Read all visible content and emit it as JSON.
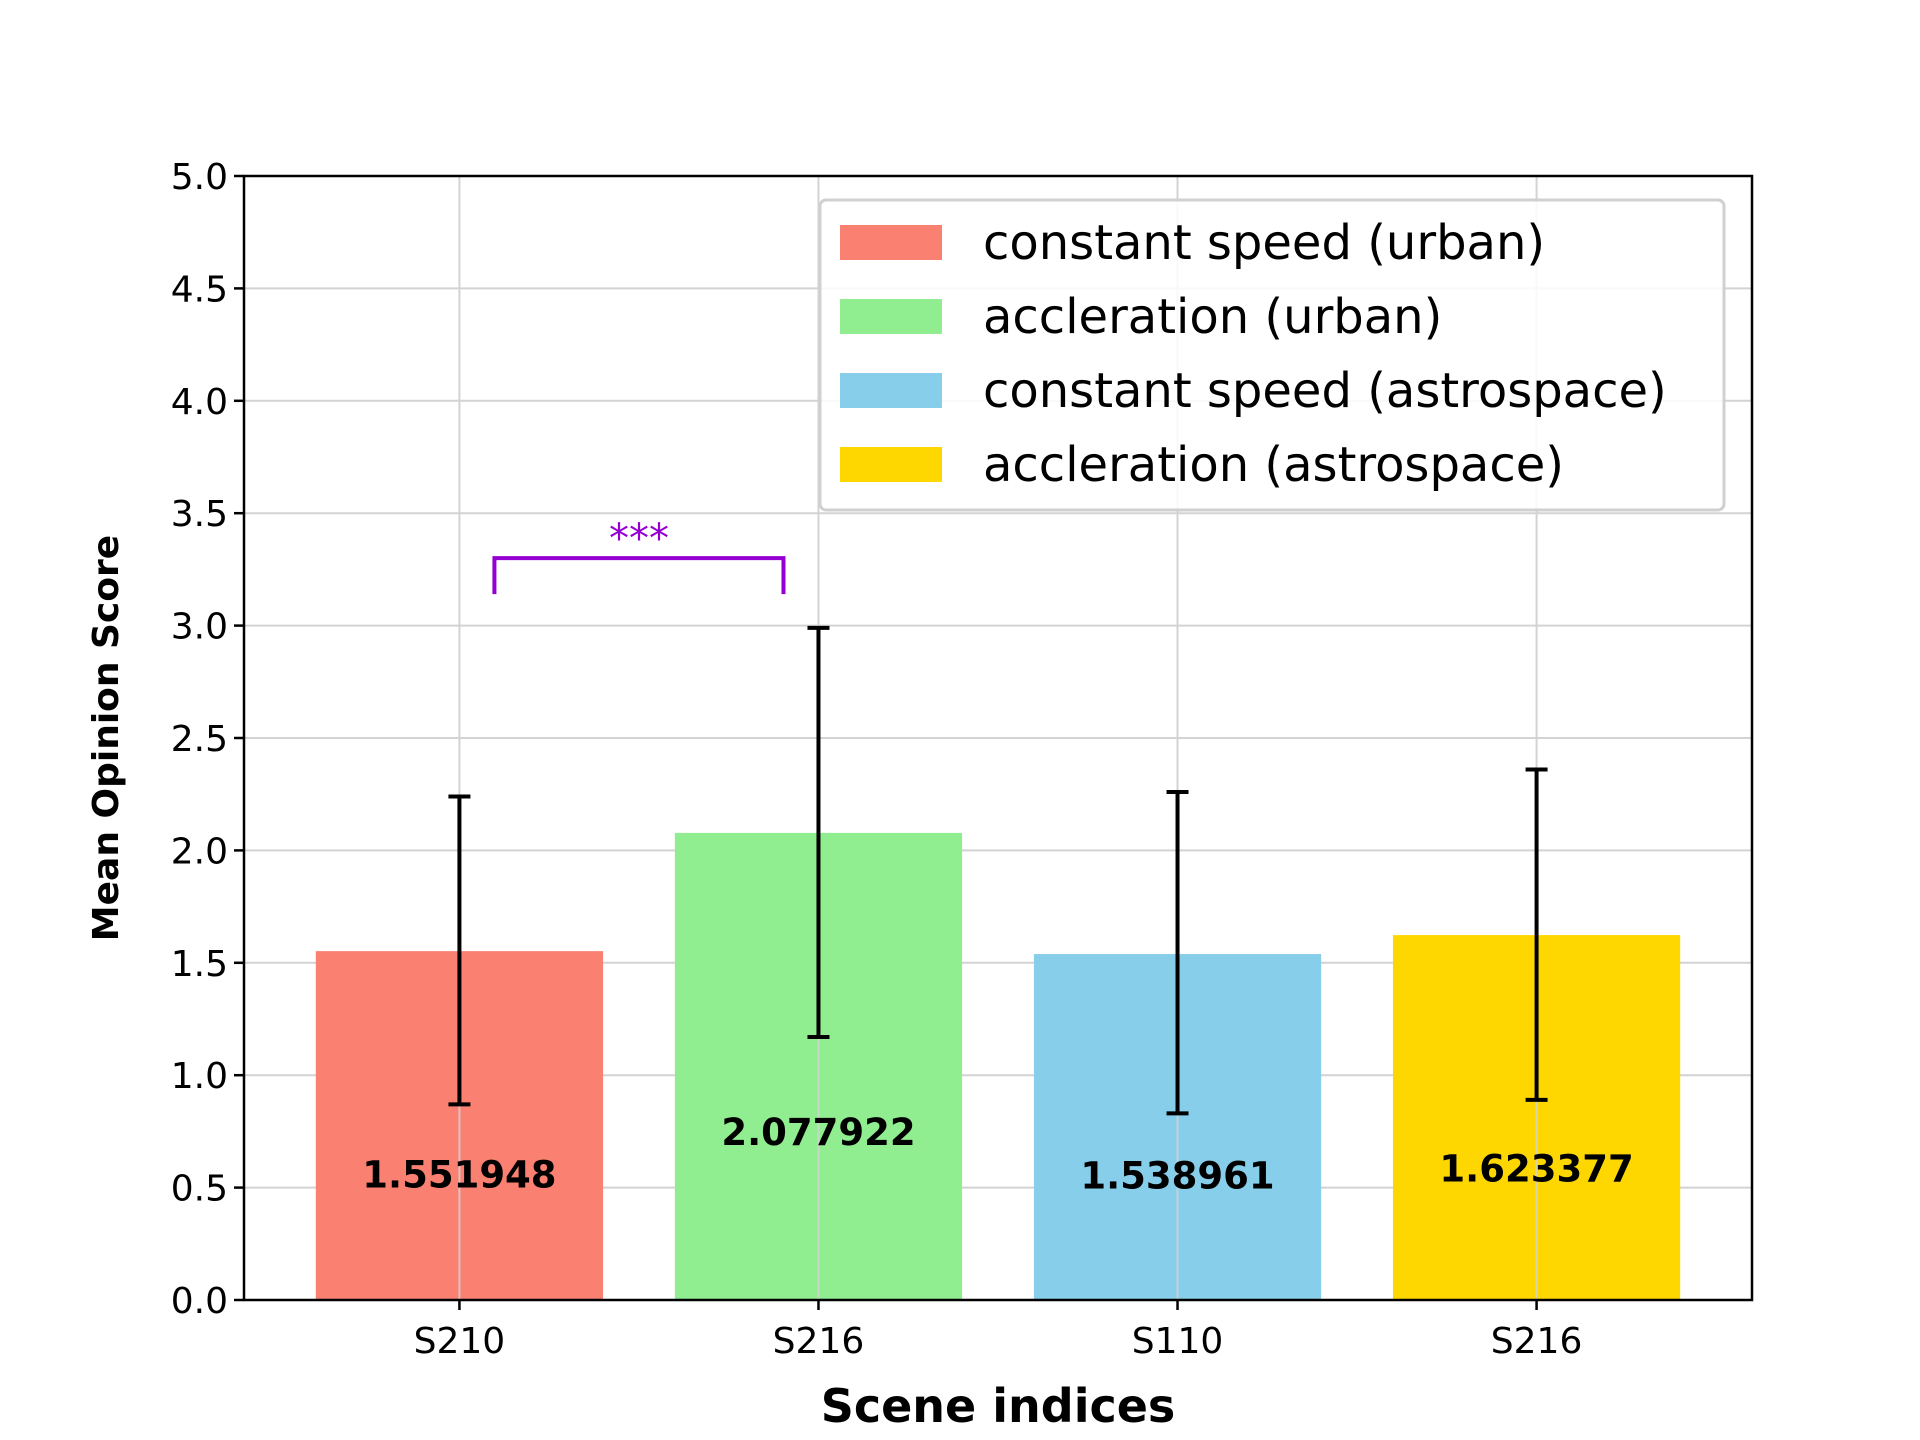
{
  "chart_data": {
    "type": "bar",
    "categories": [
      "S210",
      "S216",
      "S110",
      "S216"
    ],
    "values": [
      1.551948,
      2.077922,
      1.538961,
      1.623377
    ],
    "value_labels": [
      "1.551948",
      "2.077922",
      "1.538961",
      "1.623377"
    ],
    "error_low": [
      0.87,
      1.17,
      0.83,
      0.89
    ],
    "error_high": [
      2.24,
      2.99,
      2.26,
      2.36
    ],
    "colors": [
      "#FA8072",
      "#90EE90",
      "#87CEEB",
      "#FFD700"
    ],
    "legend": [
      "constant speed (urban)",
      "accleration (urban)",
      "constant speed (astrospace)",
      "accleration (astrospace)"
    ],
    "legend_position": "top-right",
    "xlabel": "Scene indices",
    "ylabel": "Mean Opinion Score",
    "ylim": [
      0,
      5
    ],
    "yticks": [
      0.0,
      0.5,
      1.0,
      1.5,
      2.0,
      2.5,
      3.0,
      3.5,
      4.0,
      4.5,
      5.0
    ],
    "ytick_labels": [
      "0.0",
      "0.5",
      "1.0",
      "1.5",
      "2.0",
      "2.5",
      "3.0",
      "3.5",
      "4.0",
      "4.5",
      "5.0"
    ],
    "grid": true,
    "significance": {
      "label": "***",
      "between": [
        0,
        1
      ],
      "y": 3.3,
      "color": "#9400D3"
    }
  }
}
